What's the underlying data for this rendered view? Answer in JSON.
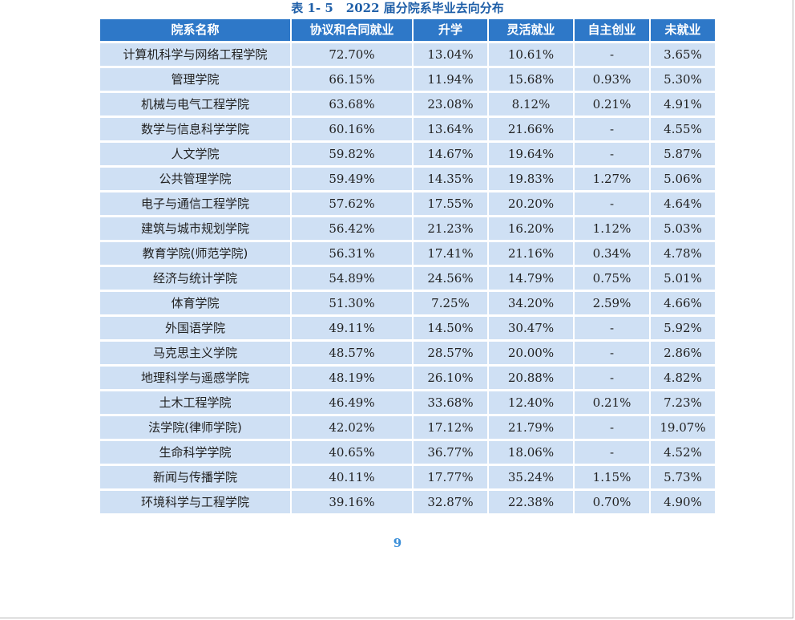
{
  "caption": {
    "number": "表 1- 5",
    "title": "2022 届分院系毕业去向分布"
  },
  "table": {
    "headers": [
      "院系名称",
      "协议和合同就业",
      "升学",
      "灵活就业",
      "自主创业",
      "未就业"
    ],
    "rows": [
      [
        "计算机科学与网络工程学院",
        "72.70%",
        "13.04%",
        "10.61%",
        "-",
        "3.65%"
      ],
      [
        "管理学院",
        "66.15%",
        "11.94%",
        "15.68%",
        "0.93%",
        "5.30%"
      ],
      [
        "机械与电气工程学院",
        "63.68%",
        "23.08%",
        "8.12%",
        "0.21%",
        "4.91%"
      ],
      [
        "数学与信息科学学院",
        "60.16%",
        "13.64%",
        "21.66%",
        "-",
        "4.55%"
      ],
      [
        "人文学院",
        "59.82%",
        "14.67%",
        "19.64%",
        "-",
        "5.87%"
      ],
      [
        "公共管理学院",
        "59.49%",
        "14.35%",
        "19.83%",
        "1.27%",
        "5.06%"
      ],
      [
        "电子与通信工程学院",
        "57.62%",
        "17.55%",
        "20.20%",
        "-",
        "4.64%"
      ],
      [
        "建筑与城市规划学院",
        "56.42%",
        "21.23%",
        "16.20%",
        "1.12%",
        "5.03%"
      ],
      [
        "教育学院(师范学院)",
        "56.31%",
        "17.41%",
        "21.16%",
        "0.34%",
        "4.78%"
      ],
      [
        "经济与统计学院",
        "54.89%",
        "24.56%",
        "14.79%",
        "0.75%",
        "5.01%"
      ],
      [
        "体育学院",
        "51.30%",
        "7.25%",
        "34.20%",
        "2.59%",
        "4.66%"
      ],
      [
        "外国语学院",
        "49.11%",
        "14.50%",
        "30.47%",
        "-",
        "5.92%"
      ],
      [
        "马克思主义学院",
        "48.57%",
        "28.57%",
        "20.00%",
        "-",
        "2.86%"
      ],
      [
        "地理科学与遥感学院",
        "48.19%",
        "26.10%",
        "20.88%",
        "-",
        "4.82%"
      ],
      [
        "土木工程学院",
        "46.49%",
        "33.68%",
        "12.40%",
        "0.21%",
        "7.23%"
      ],
      [
        "法学院(律师学院)",
        "42.02%",
        "17.12%",
        "21.79%",
        "-",
        "19.07%"
      ],
      [
        "生命科学学院",
        "40.65%",
        "36.77%",
        "18.06%",
        "-",
        "4.52%"
      ],
      [
        "新闻与传播学院",
        "40.11%",
        "17.77%",
        "35.24%",
        "1.15%",
        "5.73%"
      ],
      [
        "环境科学与工程学院",
        "39.16%",
        "32.87%",
        "22.38%",
        "0.70%",
        "4.90%"
      ]
    ]
  },
  "page_number": "9",
  "colors": {
    "header_bg": "#2e78c8",
    "cell_bg": "#cfe0f4",
    "caption_text": "#1f5fa8",
    "page_number_text": "#3a8ed8"
  }
}
